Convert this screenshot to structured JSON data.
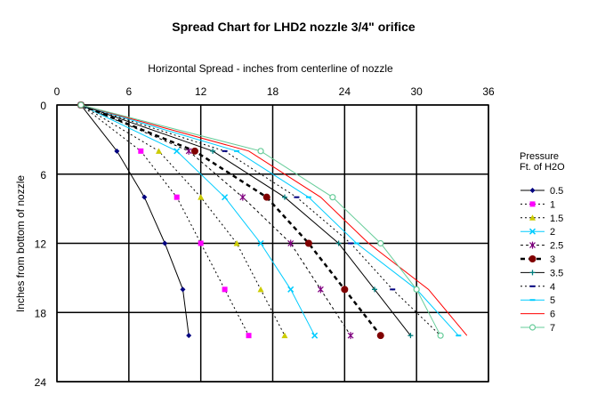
{
  "chart_data": {
    "type": "line",
    "title": "Spread Chart for LHD2 nozzle  3/4\" orifice",
    "xlabel": "Horizontal Spread - inches from centerline of nozzle",
    "ylabel": "Inches from bottom of nozzle",
    "x_axis_position": "top",
    "y_axis_inverted": true,
    "xlim": [
      0,
      36
    ],
    "ylim": [
      0,
      24
    ],
    "xticks": [
      "0",
      "6",
      "12",
      "18",
      "24",
      "30",
      "36"
    ],
    "yticks": [
      "0",
      "6",
      "12",
      "18",
      "24"
    ],
    "grid": true,
    "legend_title": [
      "Pressure",
      "Ft. of H2O"
    ],
    "legend_position": "right",
    "series": [
      {
        "name": "0.5",
        "color": "#000080",
        "dash": "",
        "marker": "diamond",
        "x": [
          2,
          5,
          7.3,
          9,
          10.5,
          11
        ],
        "y": [
          0,
          4,
          8,
          12,
          16,
          20
        ]
      },
      {
        "name": "1",
        "color": "#ff00ff",
        "dash": "2,3",
        "marker": "square",
        "x": [
          2,
          7,
          10,
          12,
          14,
          16
        ],
        "y": [
          0,
          4,
          8,
          12,
          16,
          20
        ]
      },
      {
        "name": "1.5",
        "color": "#cccc00",
        "dash": "2,3",
        "marker": "triangle",
        "x": [
          2,
          8.5,
          12,
          15,
          17,
          19
        ],
        "y": [
          0,
          4,
          8,
          12,
          16,
          20
        ]
      },
      {
        "name": "2",
        "color": "#00ccff",
        "dash": "",
        "marker": "x",
        "x": [
          2,
          10,
          14,
          17,
          19.5,
          21.5
        ],
        "y": [
          0,
          4,
          8,
          12,
          16,
          20
        ]
      },
      {
        "name": "2.5",
        "color": "#800080",
        "dash": "3,3",
        "marker": "star",
        "x": [
          2,
          11,
          15.5,
          19.5,
          22,
          24.5
        ],
        "y": [
          0,
          4,
          8,
          12,
          16,
          20
        ]
      },
      {
        "name": "3",
        "color": "#800000",
        "dash": "5,4",
        "marker": "circle",
        "x": [
          2,
          11.5,
          17.5,
          21,
          24,
          27
        ],
        "y": [
          0,
          4,
          8,
          12,
          16,
          20
        ]
      },
      {
        "name": "3.5",
        "color": "#008080",
        "dash": "",
        "marker": "plus",
        "x": [
          2,
          13,
          19,
          23.5,
          26.5,
          29.5
        ],
        "y": [
          0,
          4,
          8,
          12,
          16,
          20
        ]
      },
      {
        "name": "4",
        "color": "#000080",
        "dash": "2,3",
        "marker": "dash",
        "x": [
          2,
          14,
          20,
          24.5,
          28,
          32
        ],
        "y": [
          0,
          4,
          8,
          12,
          16,
          20
        ]
      },
      {
        "name": "5",
        "color": "#00ccff",
        "dash": "",
        "marker": "dash",
        "x": [
          2,
          15,
          21,
          25,
          30,
          33.5
        ],
        "y": [
          0,
          4,
          8,
          12,
          16,
          20
        ]
      },
      {
        "name": "6",
        "color": "#ff0000",
        "dash": "",
        "marker": "none",
        "x": [
          2,
          16,
          22,
          26,
          31,
          34.2
        ],
        "y": [
          0,
          4,
          8,
          12,
          16,
          20
        ]
      },
      {
        "name": "7",
        "color": "#66cc99",
        "dash": "",
        "marker": "circle-open",
        "x": [
          2,
          17,
          23,
          27,
          30,
          32
        ],
        "y": [
          0,
          4,
          8,
          12,
          16,
          20
        ]
      }
    ]
  }
}
